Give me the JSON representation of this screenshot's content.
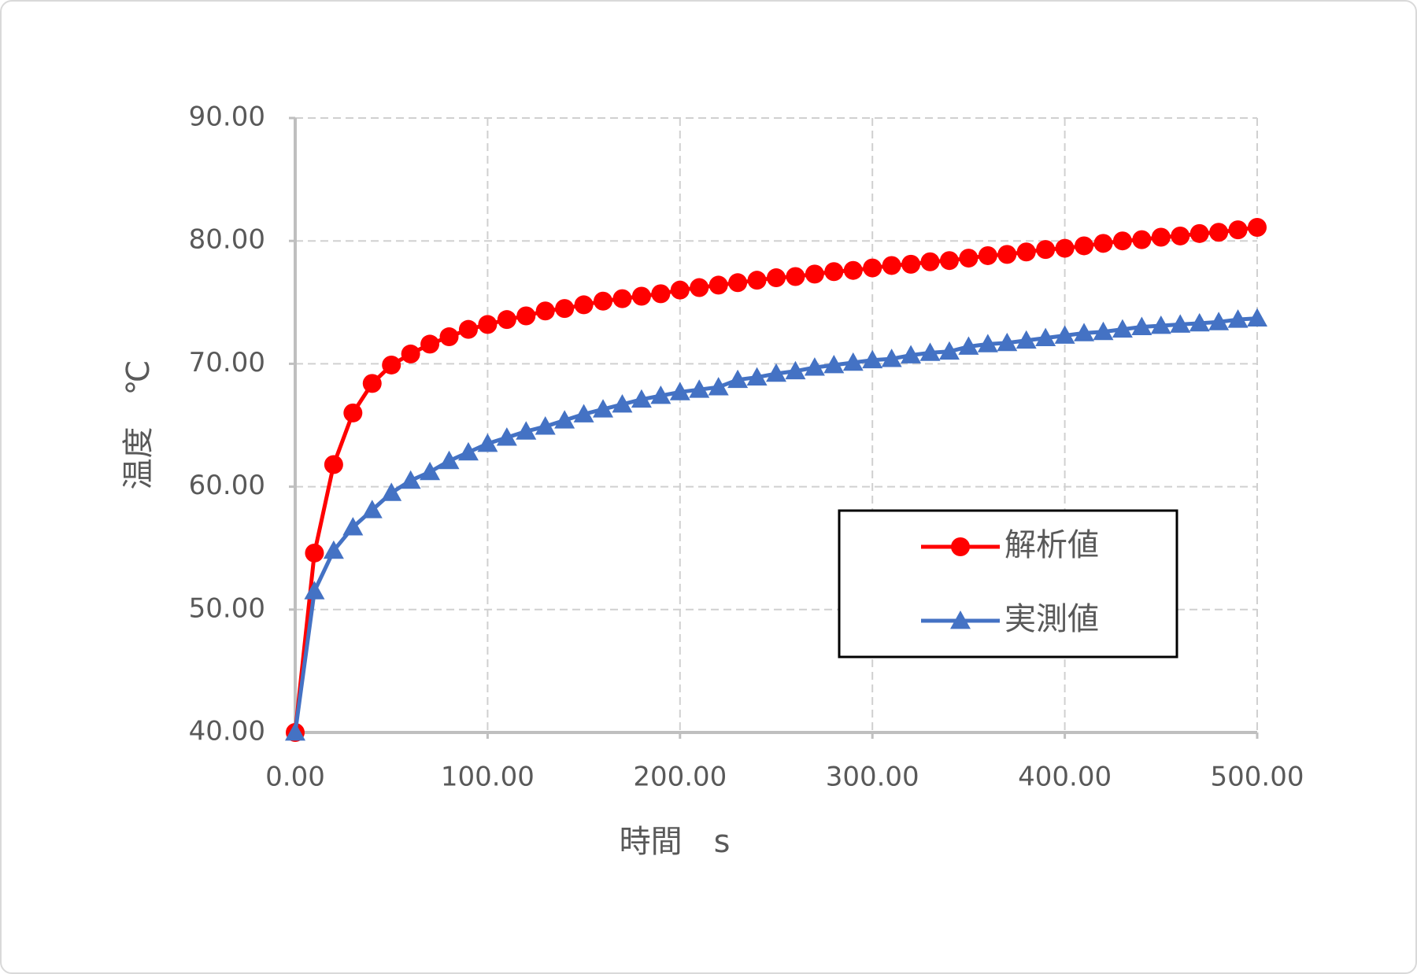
{
  "chart_data": {
    "type": "line",
    "x_label": "時間　s",
    "y_label": "温度　℃",
    "x": [
      0,
      10,
      20,
      30,
      40,
      50,
      60,
      70,
      80,
      90,
      100,
      110,
      120,
      130,
      140,
      150,
      160,
      170,
      180,
      190,
      200,
      210,
      220,
      230,
      240,
      250,
      260,
      270,
      280,
      290,
      300,
      310,
      320,
      330,
      340,
      350,
      360,
      370,
      380,
      390,
      400,
      410,
      420,
      430,
      440,
      450,
      460,
      470,
      480,
      490,
      500
    ],
    "series": [
      {
        "name": "解析値",
        "color": "#ff0000",
        "marker": "circle",
        "values": [
          40,
          54.6,
          61.8,
          66.0,
          68.4,
          69.9,
          70.8,
          71.6,
          72.2,
          72.8,
          73.2,
          73.6,
          73.9,
          74.3,
          74.5,
          74.8,
          75.1,
          75.3,
          75.5,
          75.7,
          76.0,
          76.2,
          76.4,
          76.6,
          76.8,
          77.0,
          77.1,
          77.3,
          77.5,
          77.6,
          77.8,
          78.0,
          78.1,
          78.3,
          78.4,
          78.6,
          78.8,
          78.9,
          79.1,
          79.3,
          79.4,
          79.6,
          79.8,
          80.0,
          80.1,
          80.3,
          80.4,
          80.6,
          80.7,
          80.9,
          81.1
        ]
      },
      {
        "name": "実測値",
        "color": "#4472c4",
        "marker": "triangle",
        "values": [
          40,
          51.5,
          54.8,
          56.7,
          58.1,
          59.5,
          60.5,
          61.2,
          62.1,
          62.8,
          63.5,
          64.0,
          64.5,
          64.9,
          65.4,
          65.9,
          66.3,
          66.7,
          67.1,
          67.4,
          67.7,
          67.9,
          68.1,
          68.7,
          68.9,
          69.2,
          69.4,
          69.7,
          69.9,
          70.1,
          70.3,
          70.4,
          70.7,
          70.9,
          71.0,
          71.4,
          71.6,
          71.7,
          71.9,
          72.1,
          72.3,
          72.5,
          72.6,
          72.8,
          73.0,
          73.1,
          73.2,
          73.3,
          73.4,
          73.6,
          73.7
        ]
      }
    ],
    "xlim": [
      0,
      500
    ],
    "xticks": [
      {
        "value": 0,
        "label": "0.00"
      },
      {
        "value": 100,
        "label": "100.00"
      },
      {
        "value": 200,
        "label": "200.00"
      },
      {
        "value": 300,
        "label": "300.00"
      },
      {
        "value": 400,
        "label": "400.00"
      },
      {
        "value": 500,
        "label": "500.00"
      }
    ],
    "ylim": [
      40,
      90
    ],
    "yticks": [
      {
        "value": 40,
        "label": "40.00"
      },
      {
        "value": 50,
        "label": "50.00"
      },
      {
        "value": 60,
        "label": "60.00"
      },
      {
        "value": 70,
        "label": "70.00"
      },
      {
        "value": 80,
        "label": "80.00"
      },
      {
        "value": 90,
        "label": "90.00"
      }
    ],
    "grid": true,
    "legend": "lower right"
  }
}
